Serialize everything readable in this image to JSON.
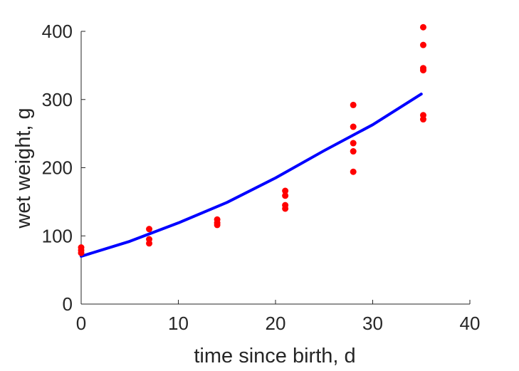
{
  "chart_data": {
    "type": "scatter",
    "title": "",
    "xlabel": "time since birth, d",
    "ylabel": "wet weight, g",
    "xlim": [
      0,
      40
    ],
    "ylim": [
      0,
      400
    ],
    "xticks": [
      0,
      10,
      20,
      30,
      40
    ],
    "yticks": [
      0,
      100,
      200,
      300,
      400
    ],
    "grid": false,
    "legend": "none",
    "series": [
      {
        "kind": "points",
        "color": "#ff0000",
        "x": [
          0,
          0,
          0,
          7,
          7,
          7,
          14,
          14,
          14,
          21,
          21,
          21,
          21,
          28,
          28,
          28,
          28,
          28,
          35.2,
          35.2,
          35.2,
          35.2,
          35.2,
          35.2
        ],
        "y": [
          83,
          79,
          75,
          110,
          95,
          89,
          124,
          119,
          116,
          166,
          159,
          145,
          140,
          292,
          260,
          236,
          224,
          194,
          406,
          380,
          346,
          343,
          277,
          271
        ]
      },
      {
        "kind": "line",
        "color": "#0000ff",
        "x": [
          0,
          5,
          10,
          15,
          20,
          25,
          30,
          35
        ],
        "y": [
          70,
          92,
          119,
          149,
          185,
          225,
          263,
          308
        ]
      }
    ]
  }
}
